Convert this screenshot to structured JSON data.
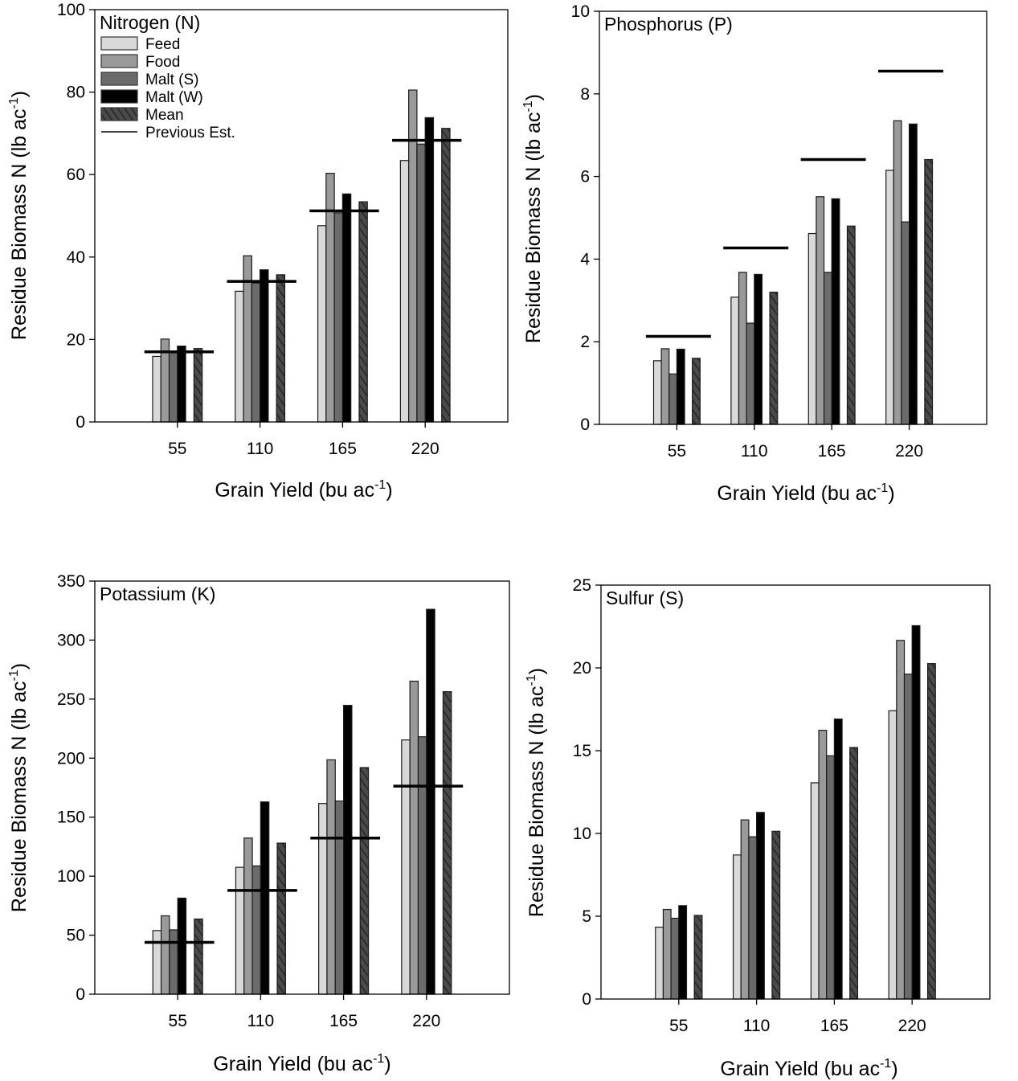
{
  "legend": {
    "entries": [
      "Feed",
      "Food",
      "Malt (S)",
      "Malt (W)",
      "Mean",
      "Previous Est."
    ]
  },
  "colors": {
    "Feed": "#d9d9d9",
    "Food": "#9a9a9a",
    "Malt (S)": "#6b6b6b",
    "Malt (W)": "#000000",
    "Mean": "#4a4a4a",
    "Previous Est.": "#000000"
  },
  "chart_data": [
    {
      "type": "bar",
      "title": "Nitrogen (N)",
      "xlabel": {
        "text": "Grain Yield (bu ac",
        "sup": "-1",
        "end": ")"
      },
      "ylabel": {
        "text": "Residue Biomass N (lb ac",
        "sup": "-1",
        "end": ")"
      },
      "categories": [
        "55",
        "110",
        "165",
        "220"
      ],
      "ylim": [
        0,
        100
      ],
      "yticks": [
        "0",
        "20",
        "40",
        "60",
        "80",
        "100"
      ],
      "legend_position": "top-left",
      "grid": false,
      "series": [
        {
          "name": "Feed",
          "values": [
            15.9,
            31.7,
            47.6,
            63.4
          ]
        },
        {
          "name": "Food",
          "values": [
            20.1,
            40.3,
            60.3,
            80.5
          ]
        },
        {
          "name": "Malt (S)",
          "values": [
            17.0,
            33.7,
            50.7,
            67.4
          ]
        },
        {
          "name": "Malt (W)",
          "values": [
            18.4,
            36.9,
            55.3,
            73.8
          ]
        },
        {
          "name": "Mean",
          "values": [
            17.8,
            35.7,
            53.4,
            71.2
          ]
        }
      ],
      "previous_est": [
        17.0,
        34.1,
        51.2,
        68.3
      ]
    },
    {
      "type": "bar",
      "title": "Phosphorus (P)",
      "xlabel": {
        "text": "Grain Yield (bu ac",
        "sup": "-1",
        "end": ")"
      },
      "ylabel": {
        "text": "Residue Biomass N (lb ac",
        "sup": "-1",
        "end": ")"
      },
      "categories": [
        "55",
        "110",
        "165",
        "220"
      ],
      "ylim": [
        0,
        10
      ],
      "yticks": [
        "0",
        "2",
        "4",
        "6",
        "8",
        "10"
      ],
      "grid": false,
      "series": [
        {
          "name": "Feed",
          "values": [
            1.54,
            3.08,
            4.62,
            6.15
          ]
        },
        {
          "name": "Food",
          "values": [
            1.83,
            3.68,
            5.51,
            7.35
          ]
        },
        {
          "name": "Malt (S)",
          "values": [
            1.22,
            2.45,
            3.68,
            4.9
          ]
        },
        {
          "name": "Malt (W)",
          "values": [
            1.82,
            3.63,
            5.46,
            7.27
          ]
        },
        {
          "name": "Mean",
          "values": [
            1.6,
            3.2,
            4.8,
            6.41
          ]
        }
      ],
      "previous_est": [
        2.13,
        4.27,
        6.41,
        8.55
      ]
    },
    {
      "type": "bar",
      "title": "Potassium (K)",
      "xlabel": {
        "text": "Grain Yield (bu ac",
        "sup": "-1",
        "end": ")"
      },
      "ylabel": {
        "text": "Residue Biomass N (lb ac",
        "sup": "-1",
        "end": ")"
      },
      "categories": [
        "55",
        "110",
        "165",
        "220"
      ],
      "ylim": [
        0,
        350
      ],
      "yticks": [
        "0",
        "50",
        "100",
        "150",
        "200",
        "250",
        "300",
        "350"
      ],
      "grid": false,
      "series": [
        {
          "name": "Feed",
          "values": [
            53.9,
            107.5,
            161.6,
            215.4
          ]
        },
        {
          "name": "Food",
          "values": [
            66.4,
            132.3,
            198.6,
            265.2
          ]
        },
        {
          "name": "Malt (S)",
          "values": [
            54.5,
            108.7,
            163.6,
            218.1
          ]
        },
        {
          "name": "Malt (W)",
          "values": [
            81.4,
            162.9,
            244.7,
            326.1
          ]
        },
        {
          "name": "Mean",
          "values": [
            63.7,
            128.0,
            192.0,
            256.3
          ]
        }
      ],
      "previous_est": [
        43.9,
        87.9,
        132.3,
        176.3
      ]
    },
    {
      "type": "bar",
      "title": "Sulfur (S)",
      "xlabel": {
        "text": "Grain Yield (bu ac",
        "sup": "-1",
        "end": ")"
      },
      "ylabel": {
        "text": "Residue Biomass N (lb ac",
        "sup": "-1",
        "end": ")"
      },
      "categories": [
        "55",
        "110",
        "165",
        "220"
      ],
      "ylim": [
        0,
        25
      ],
      "yticks": [
        "0",
        "5",
        "10",
        "15",
        "20",
        "25"
      ],
      "grid": false,
      "series": [
        {
          "name": "Feed",
          "values": [
            4.34,
            8.7,
            13.06,
            17.41
          ]
        },
        {
          "name": "Food",
          "values": [
            5.41,
            10.82,
            16.23,
            21.66
          ]
        },
        {
          "name": "Malt (S)",
          "values": [
            4.88,
            9.8,
            14.69,
            19.62
          ]
        },
        {
          "name": "Malt (W)",
          "values": [
            5.64,
            11.27,
            16.91,
            22.55
          ]
        },
        {
          "name": "Mean",
          "values": [
            5.05,
            10.13,
            15.19,
            20.26
          ]
        }
      ],
      "previous_est": []
    }
  ]
}
